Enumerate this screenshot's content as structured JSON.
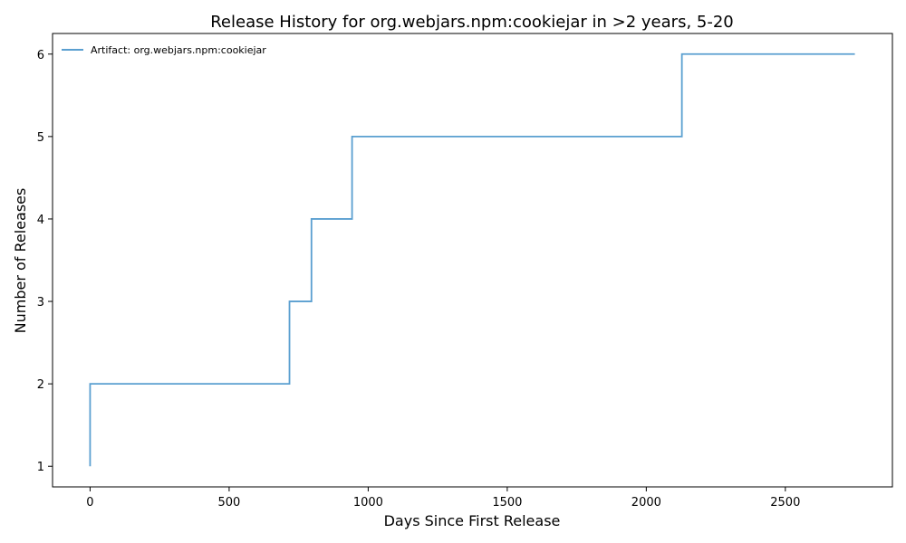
{
  "chart_data": {
    "type": "line",
    "step": "post",
    "title": "Release History for org.webjars.npm:cookiejar in >2 years, 5-20",
    "xlabel": "Days Since First Release",
    "ylabel": "Number of Releases",
    "xlim": [
      -135,
      2885
    ],
    "ylim": [
      0.75,
      6.25
    ],
    "xticks": [
      0,
      500,
      1000,
      1500,
      2000,
      2500
    ],
    "yticks": [
      1,
      2,
      3,
      4,
      5,
      6
    ],
    "grid": false,
    "legend_position": "top-left",
    "series": [
      {
        "name": "Artifact: org.webjars.npm:cookiejar",
        "color": "#5a9fd0",
        "x": [
          0,
          0,
          717,
          796,
          942,
          2128,
          2750
        ],
        "y": [
          1,
          2,
          3,
          4,
          5,
          6,
          6
        ]
      }
    ]
  }
}
